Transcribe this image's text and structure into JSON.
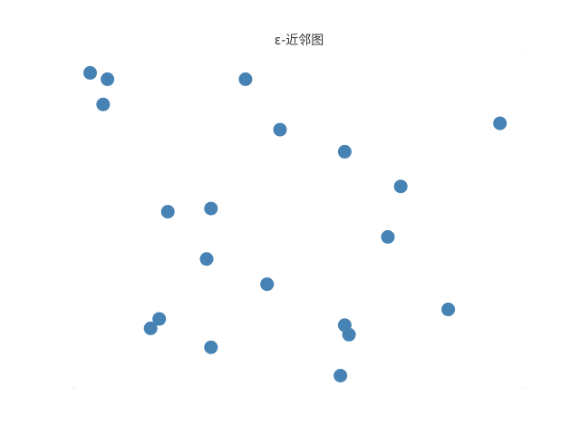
{
  "chart_data": {
    "type": "scatter",
    "title": "ε-近邻图",
    "xlabel": "",
    "ylabel": "",
    "grid": false,
    "axes_visible": false,
    "xlim": [
      0,
      1
    ],
    "ylim": [
      0,
      1
    ],
    "point_color": "#4682b4",
    "series": [
      {
        "points": [
          {
            "x": 0.02,
            "y": 0.97
          },
          {
            "x": 0.06,
            "y": 0.95
          },
          {
            "x": 0.05,
            "y": 0.87
          },
          {
            "x": 0.38,
            "y": 0.95
          },
          {
            "x": 0.46,
            "y": 0.79
          },
          {
            "x": 0.61,
            "y": 0.72
          },
          {
            "x": 0.97,
            "y": 0.81
          },
          {
            "x": 0.74,
            "y": 0.61
          },
          {
            "x": 0.2,
            "y": 0.53
          },
          {
            "x": 0.3,
            "y": 0.54
          },
          {
            "x": 0.71,
            "y": 0.45
          },
          {
            "x": 0.29,
            "y": 0.38
          },
          {
            "x": 0.43,
            "y": 0.3
          },
          {
            "x": 0.85,
            "y": 0.22
          },
          {
            "x": 0.18,
            "y": 0.19
          },
          {
            "x": 0.16,
            "y": 0.16
          },
          {
            "x": 0.61,
            "y": 0.17
          },
          {
            "x": 0.62,
            "y": 0.14
          },
          {
            "x": 0.3,
            "y": 0.1
          },
          {
            "x": 0.6,
            "y": 0.01
          }
        ]
      }
    ]
  }
}
